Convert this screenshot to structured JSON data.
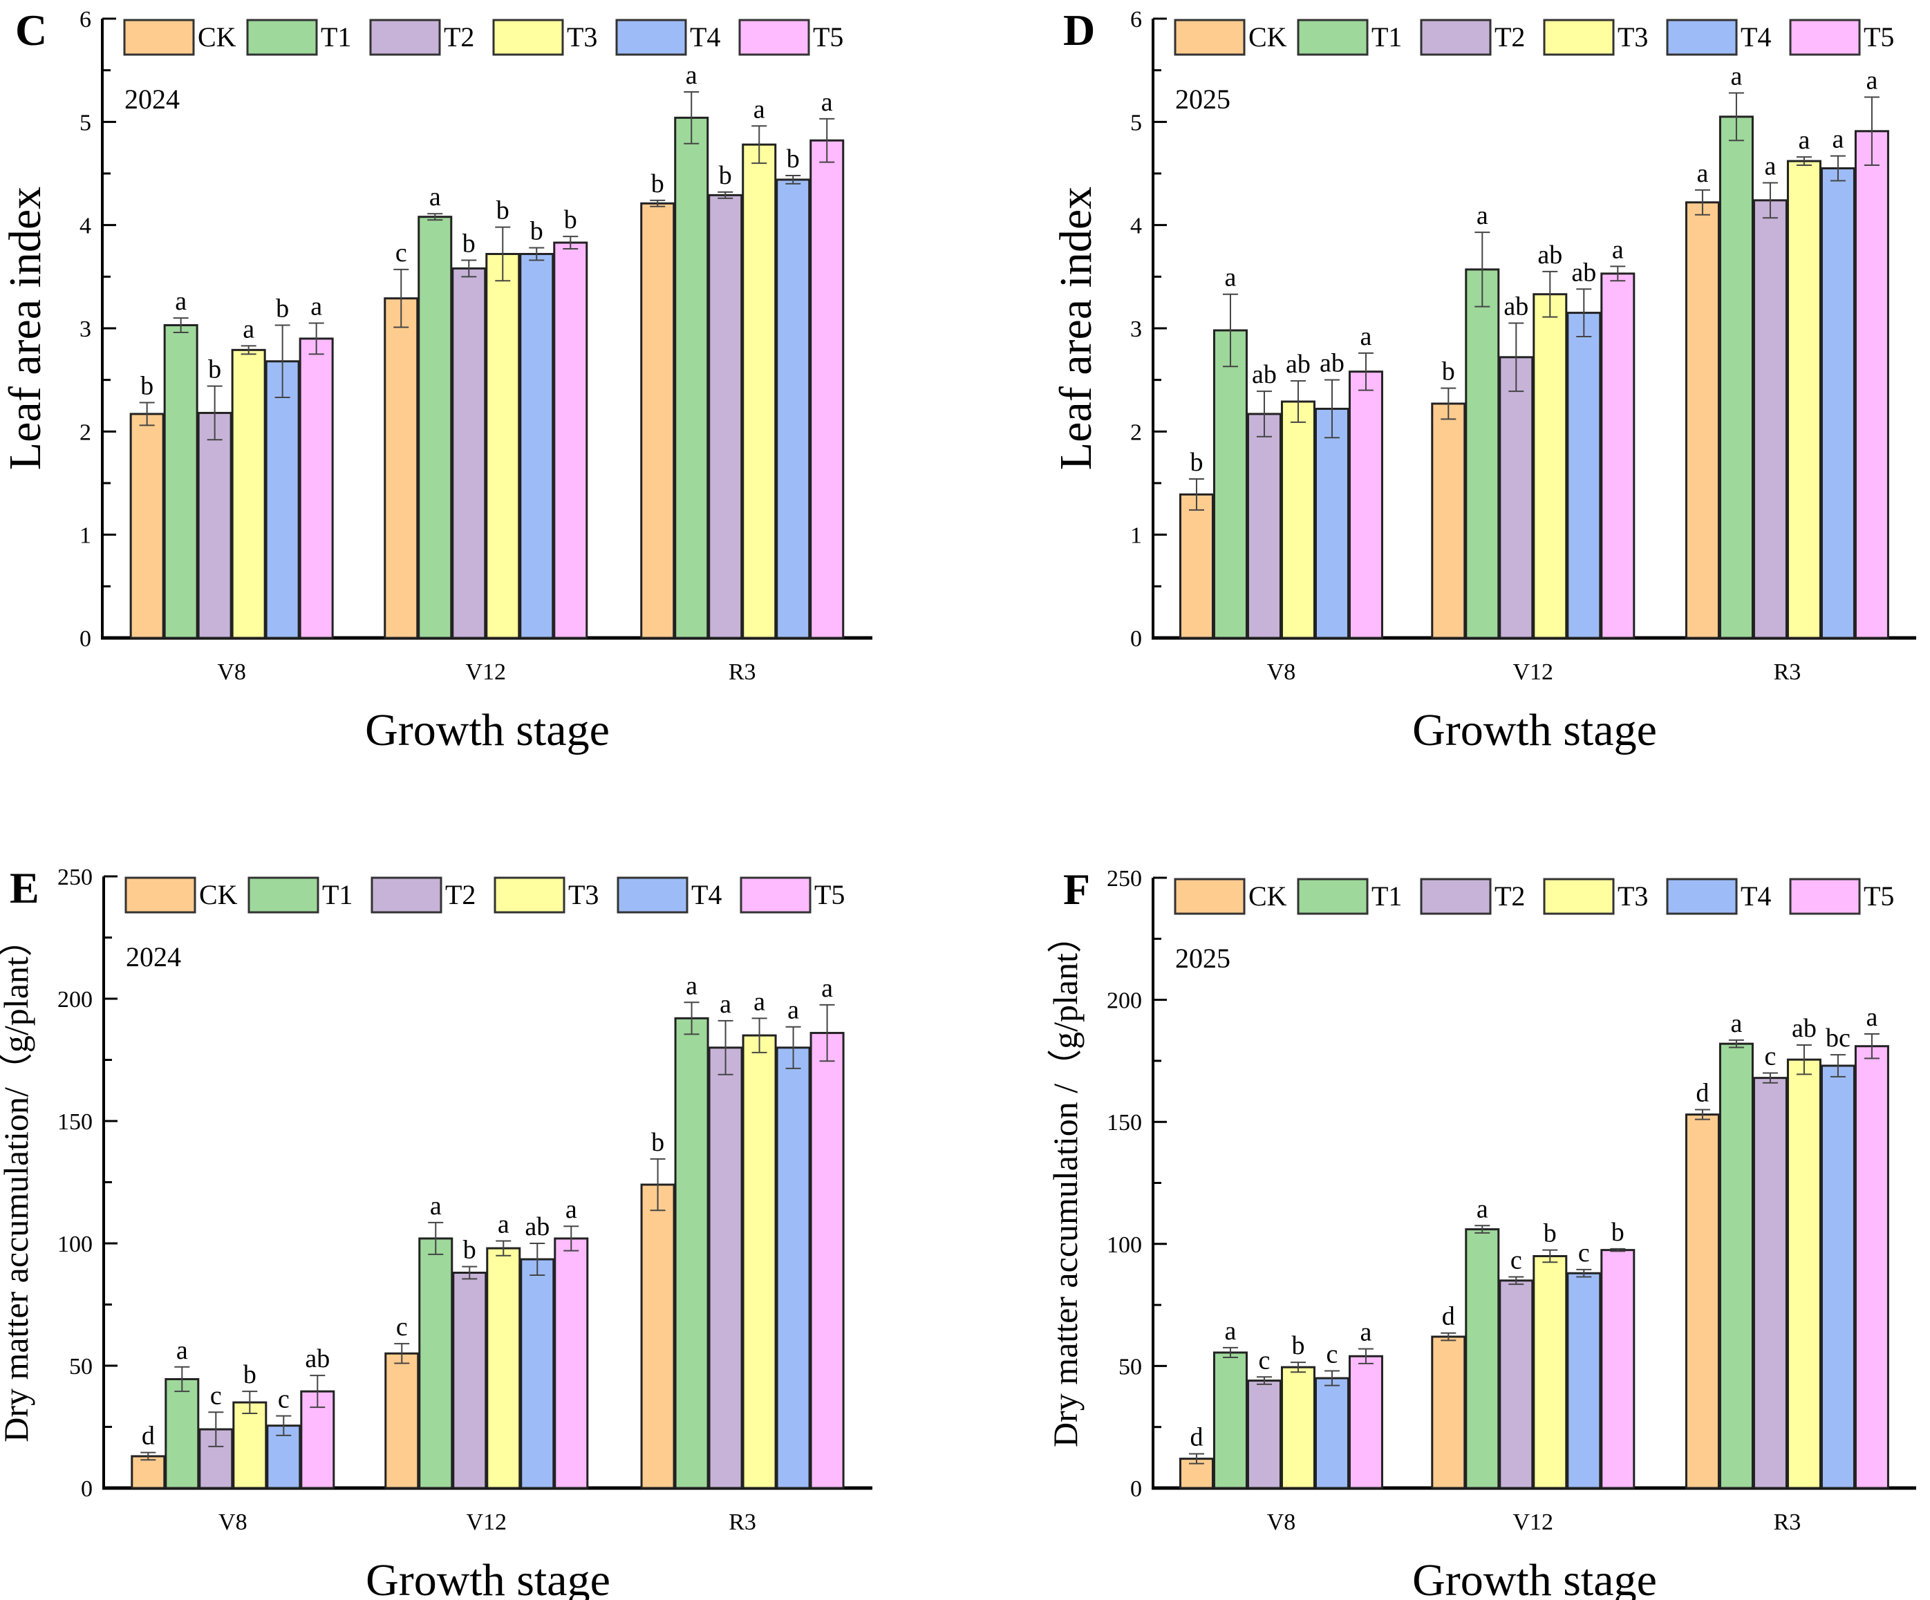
{
  "figure": {
    "treatments": [
      "CK",
      "T1",
      "T2",
      "T3",
      "T4",
      "T5"
    ],
    "colors": {
      "CK": "#FFCC8F",
      "T1": "#9ED89B",
      "T2": "#C7B3D8",
      "T3": "#FFFF9F",
      "T4": "#9DBCF7",
      "T5": "#FFBBFF"
    }
  },
  "chart_data": [
    {
      "panel": "C",
      "type": "bar",
      "title": "",
      "annotation": "2024",
      "xlabel": "Growth stage",
      "ylabel": "Leaf area index",
      "ylim": [
        0,
        6
      ],
      "yticks": [
        0,
        1,
        2,
        3,
        4,
        5,
        6
      ],
      "yminor": 0.5,
      "categories": [
        "V8",
        "V12",
        "R3"
      ],
      "legend": "top",
      "series": [
        {
          "name": "CK",
          "values": [
            2.17,
            3.29,
            4.21
          ],
          "errors": [
            0.11,
            0.28,
            0.03
          ],
          "letters": [
            "b",
            "c",
            "b"
          ]
        },
        {
          "name": "T1",
          "values": [
            3.03,
            4.08,
            5.04
          ],
          "errors": [
            0.07,
            0.03,
            0.25
          ],
          "letters": [
            "a",
            "a",
            "a"
          ]
        },
        {
          "name": "T2",
          "values": [
            2.18,
            3.58,
            4.29
          ],
          "errors": [
            0.26,
            0.08,
            0.03
          ],
          "letters": [
            "b",
            "b",
            "b"
          ]
        },
        {
          "name": "T3",
          "values": [
            2.79,
            3.72,
            4.78
          ],
          "errors": [
            0.04,
            0.26,
            0.18
          ],
          "letters": [
            "a",
            "b",
            "a"
          ]
        },
        {
          "name": "T4",
          "values": [
            2.68,
            3.72,
            4.44
          ],
          "errors": [
            0.35,
            0.06,
            0.04
          ],
          "letters": [
            "b",
            "b",
            "b"
          ]
        },
        {
          "name": "T5",
          "values": [
            2.9,
            3.83,
            4.82
          ],
          "errors": [
            0.15,
            0.06,
            0.21
          ],
          "letters": [
            "a",
            "b",
            "a"
          ]
        }
      ]
    },
    {
      "panel": "D",
      "type": "bar",
      "title": "",
      "annotation": "2025",
      "xlabel": "Growth stage",
      "ylabel": "Leaf area index",
      "ylim": [
        0,
        6
      ],
      "yticks": [
        0,
        1,
        2,
        3,
        4,
        5,
        6
      ],
      "yminor": 0.5,
      "categories": [
        "V8",
        "V12",
        "R3"
      ],
      "legend": "top",
      "series": [
        {
          "name": "CK",
          "values": [
            1.39,
            2.27,
            4.22
          ],
          "errors": [
            0.15,
            0.15,
            0.12
          ],
          "letters": [
            "b",
            "b",
            "a"
          ]
        },
        {
          "name": "T1",
          "values": [
            2.98,
            3.57,
            5.05
          ],
          "errors": [
            0.35,
            0.36,
            0.23
          ],
          "letters": [
            "a",
            "a",
            "a"
          ]
        },
        {
          "name": "T2",
          "values": [
            2.17,
            2.72,
            4.24
          ],
          "errors": [
            0.22,
            0.33,
            0.17
          ],
          "letters": [
            "ab",
            "ab",
            "a"
          ]
        },
        {
          "name": "T3",
          "values": [
            2.29,
            3.33,
            4.62
          ],
          "errors": [
            0.2,
            0.22,
            0.04
          ],
          "letters": [
            "ab",
            "ab",
            "a"
          ]
        },
        {
          "name": "T4",
          "values": [
            2.22,
            3.15,
            4.55
          ],
          "errors": [
            0.28,
            0.23,
            0.12
          ],
          "letters": [
            "ab",
            "ab",
            "a"
          ]
        },
        {
          "name": "T5",
          "values": [
            2.58,
            3.53,
            4.91
          ],
          "errors": [
            0.18,
            0.07,
            0.33
          ],
          "letters": [
            "a",
            "a",
            "a"
          ]
        }
      ]
    },
    {
      "panel": "E",
      "type": "bar",
      "title": "",
      "annotation": "2024",
      "xlabel": "Growth stage",
      "ylabel": "Dry matter accumulation/（g/plant）",
      "ylim": [
        0,
        250
      ],
      "yticks": [
        0,
        50,
        100,
        150,
        200,
        250
      ],
      "yminor": 25,
      "categories": [
        "V8",
        "V12",
        "R3"
      ],
      "legend": "top",
      "series": [
        {
          "name": "CK",
          "values": [
            13,
            55,
            124
          ],
          "errors": [
            1.5,
            4,
            10.5
          ],
          "letters": [
            "d",
            "c",
            "b"
          ]
        },
        {
          "name": "T1",
          "values": [
            44.5,
            102,
            192
          ],
          "errors": [
            5,
            6.5,
            6.5
          ],
          "letters": [
            "a",
            "a",
            "a"
          ]
        },
        {
          "name": "T2",
          "values": [
            24,
            88,
            180
          ],
          "errors": [
            7,
            2.5,
            11
          ],
          "letters": [
            "c",
            "b",
            "a"
          ]
        },
        {
          "name": "T3",
          "values": [
            35,
            98,
            185
          ],
          "errors": [
            4.5,
            3,
            7
          ],
          "letters": [
            "b",
            "a",
            "a"
          ]
        },
        {
          "name": "T4",
          "values": [
            25.5,
            93.5,
            180
          ],
          "errors": [
            4,
            6.5,
            8.5
          ],
          "letters": [
            "c",
            "ab",
            "a"
          ]
        },
        {
          "name": "T5",
          "values": [
            39.5,
            102,
            186
          ],
          "errors": [
            6.5,
            5,
            11.5
          ],
          "letters": [
            "ab",
            "a",
            "a"
          ]
        }
      ]
    },
    {
      "panel": "F",
      "type": "bar",
      "title": "",
      "annotation": "2025",
      "xlabel": "Growth stage",
      "ylabel": "Dry matter accumulation /（g/plant）",
      "ylim": [
        0,
        250
      ],
      "yticks": [
        0,
        50,
        100,
        150,
        200,
        250
      ],
      "yminor": 25,
      "categories": [
        "V8",
        "V12",
        "R3"
      ],
      "legend": "top",
      "series": [
        {
          "name": "CK",
          "values": [
            12,
            62,
            153
          ],
          "errors": [
            2,
            1.5,
            2
          ],
          "letters": [
            "d",
            "d",
            "d"
          ]
        },
        {
          "name": "T1",
          "values": [
            55.5,
            106,
            182
          ],
          "errors": [
            2,
            1.5,
            1.5
          ],
          "letters": [
            "a",
            "a",
            "a"
          ]
        },
        {
          "name": "T2",
          "values": [
            44,
            85,
            168
          ],
          "errors": [
            1.5,
            1.5,
            2
          ],
          "letters": [
            "c",
            "c",
            "c"
          ]
        },
        {
          "name": "T3",
          "values": [
            49.5,
            95,
            175.5
          ],
          "errors": [
            2,
            2.5,
            6
          ],
          "letters": [
            "b",
            "b",
            "ab"
          ]
        },
        {
          "name": "T4",
          "values": [
            45,
            88,
            173
          ],
          "errors": [
            3,
            1.5,
            4.5
          ],
          "letters": [
            "c",
            "c",
            "bc"
          ]
        },
        {
          "name": "T5",
          "values": [
            54,
            97.5,
            181
          ],
          "errors": [
            3,
            0.5,
            5
          ],
          "letters": [
            "a",
            "b",
            "a"
          ]
        }
      ]
    }
  ]
}
